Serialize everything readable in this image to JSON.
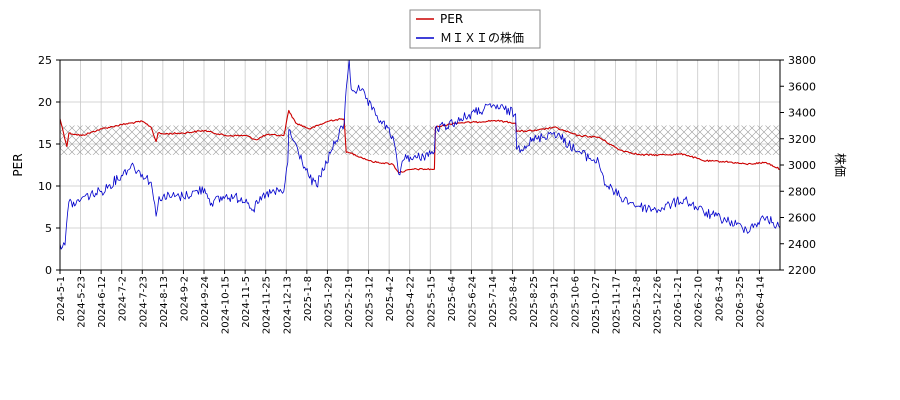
{
  "chart_data": {
    "type": "line",
    "title": "",
    "xlabel": "",
    "ylabel_left": "PER",
    "ylabel_right": "株価",
    "ylim_left": [
      0,
      25
    ],
    "ylim_right": [
      2200,
      3800
    ],
    "yticks_left": [
      "0",
      "5",
      "10",
      "15",
      "20",
      "25"
    ],
    "yticks_right": [
      "2200",
      "2400",
      "2600",
      "2800",
      "3000",
      "3200",
      "3400",
      "3600",
      "3800"
    ],
    "xlim": [
      "2024-05-01",
      "2026-04-28"
    ],
    "x_tick_labels": [
      "2024-5-1",
      "2024-5-23",
      "2024-6-12",
      "2024-7-2",
      "2024-7-23",
      "2024-8-13",
      "2024-9-2",
      "2024-9-24",
      "2024-10-15",
      "2024-11-5",
      "2024-11-25",
      "2024-12-13",
      "2025-1-8",
      "2025-1-29",
      "2025-2-19",
      "2025-3-12",
      "2025-4-2",
      "2025-4-22",
      "2025-5-15",
      "2025-6-4",
      "2025-6-24",
      "2025-7-14",
      "2025-8-4",
      "2025-8-25",
      "2025-9-12",
      "2025-10-6",
      "2025-10-27",
      "2025-11-17",
      "2025-12-8",
      "2025-12-26",
      "2026-1-21",
      "2026-2-10",
      "2026-3-4",
      "2026-3-25",
      "2026-4-14"
    ],
    "grid": true,
    "legend_position": "top-center",
    "band": {
      "axis": "left",
      "from": 13.7,
      "to": 17.2,
      "style": "crosshatch"
    },
    "series": [
      {
        "name": "PER",
        "axis": "left",
        "color": "#cc0000",
        "points": [
          [
            "2024-05-01",
            18.0
          ],
          [
            "2024-05-08",
            14.7
          ],
          [
            "2024-05-10",
            16.3
          ],
          [
            "2024-05-23",
            16.0
          ],
          [
            "2024-06-12",
            16.8
          ],
          [
            "2024-07-02",
            17.3
          ],
          [
            "2024-07-23",
            17.7
          ],
          [
            "2024-08-01",
            17.0
          ],
          [
            "2024-08-06",
            15.3
          ],
          [
            "2024-08-08",
            16.3
          ],
          [
            "2024-08-13",
            16.2
          ],
          [
            "2024-09-02",
            16.3
          ],
          [
            "2024-09-24",
            16.6
          ],
          [
            "2024-10-15",
            16.0
          ],
          [
            "2024-11-05",
            16.0
          ],
          [
            "2024-11-15",
            15.5
          ],
          [
            "2024-11-25",
            16.1
          ],
          [
            "2024-12-13",
            16.0
          ],
          [
            "2024-12-18",
            19.0
          ],
          [
            "2024-12-25",
            17.5
          ],
          [
            "2025-01-08",
            16.8
          ],
          [
            "2025-01-29",
            17.8
          ],
          [
            "2025-02-12",
            18.0
          ],
          [
            "2025-02-14",
            14.0
          ],
          [
            "2025-02-19",
            13.9
          ],
          [
            "2025-03-12",
            12.9
          ],
          [
            "2025-04-02",
            12.6
          ],
          [
            "2025-04-08",
            11.6
          ],
          [
            "2025-04-22",
            12.0
          ],
          [
            "2025-05-14",
            12.0
          ],
          [
            "2025-05-15",
            17.0
          ],
          [
            "2025-06-04",
            17.5
          ],
          [
            "2025-06-24",
            17.6
          ],
          [
            "2025-07-14",
            17.8
          ],
          [
            "2025-08-04",
            17.5
          ],
          [
            "2025-08-05",
            16.5
          ],
          [
            "2025-08-25",
            16.6
          ],
          [
            "2025-09-12",
            17.0
          ],
          [
            "2025-10-06",
            16.0
          ],
          [
            "2025-10-27",
            15.8
          ],
          [
            "2025-11-17",
            14.3
          ],
          [
            "2025-12-08",
            13.7
          ],
          [
            "2025-12-26",
            13.7
          ],
          [
            "2026-01-21",
            13.8
          ],
          [
            "2026-02-10",
            13.0
          ],
          [
            "2026-03-04",
            12.9
          ],
          [
            "2026-03-25",
            12.6
          ],
          [
            "2026-04-14",
            12.8
          ],
          [
            "2026-04-28",
            12.0
          ]
        ]
      },
      {
        "name": "ＭＩＸＩの株価",
        "axis": "right",
        "color": "#0000cc",
        "points": [
          [
            "2024-05-01",
            2400
          ],
          [
            "2024-05-06",
            2390
          ],
          [
            "2024-05-10",
            2720
          ],
          [
            "2024-05-17",
            2700
          ],
          [
            "2024-05-23",
            2750
          ],
          [
            "2024-06-12",
            2800
          ],
          [
            "2024-07-02",
            2920
          ],
          [
            "2024-07-12",
            3000
          ],
          [
            "2024-07-23",
            2930
          ],
          [
            "2024-08-01",
            2870
          ],
          [
            "2024-08-06",
            2610
          ],
          [
            "2024-08-09",
            2760
          ],
          [
            "2024-08-13",
            2760
          ],
          [
            "2024-09-02",
            2760
          ],
          [
            "2024-09-24",
            2820
          ],
          [
            "2024-10-01",
            2710
          ],
          [
            "2024-10-15",
            2760
          ],
          [
            "2024-11-05",
            2740
          ],
          [
            "2024-11-12",
            2660
          ],
          [
            "2024-11-25",
            2780
          ],
          [
            "2024-12-13",
            2800
          ],
          [
            "2024-12-17",
            3020
          ],
          [
            "2024-12-18",
            3270
          ],
          [
            "2025-01-08",
            2900
          ],
          [
            "2025-01-15",
            2840
          ],
          [
            "2025-01-29",
            3090
          ],
          [
            "2025-02-12",
            3320
          ],
          [
            "2025-02-14",
            3580
          ],
          [
            "2025-02-17",
            3800
          ],
          [
            "2025-02-19",
            3580
          ],
          [
            "2025-03-01",
            3570
          ],
          [
            "2025-03-12",
            3420
          ],
          [
            "2025-04-02",
            3220
          ],
          [
            "2025-04-08",
            2930
          ],
          [
            "2025-04-15",
            3080
          ],
          [
            "2025-04-22",
            3040
          ],
          [
            "2025-05-14",
            3100
          ],
          [
            "2025-05-15",
            3270
          ],
          [
            "2025-06-04",
            3330
          ],
          [
            "2025-06-24",
            3400
          ],
          [
            "2025-07-14",
            3450
          ],
          [
            "2025-08-04",
            3390
          ],
          [
            "2025-08-05",
            3120
          ],
          [
            "2025-08-25",
            3200
          ],
          [
            "2025-09-12",
            3250
          ],
          [
            "2025-10-06",
            3100
          ],
          [
            "2025-10-27",
            3020
          ],
          [
            "2025-11-03",
            2850
          ],
          [
            "2025-11-17",
            2760
          ],
          [
            "2025-12-08",
            2680
          ],
          [
            "2025-12-26",
            2660
          ],
          [
            "2026-01-21",
            2740
          ],
          [
            "2026-02-10",
            2640
          ],
          [
            "2026-03-04",
            2580
          ],
          [
            "2026-03-25",
            2510
          ],
          [
            "2026-04-14",
            2600
          ],
          [
            "2026-04-28",
            2520
          ]
        ]
      }
    ]
  }
}
